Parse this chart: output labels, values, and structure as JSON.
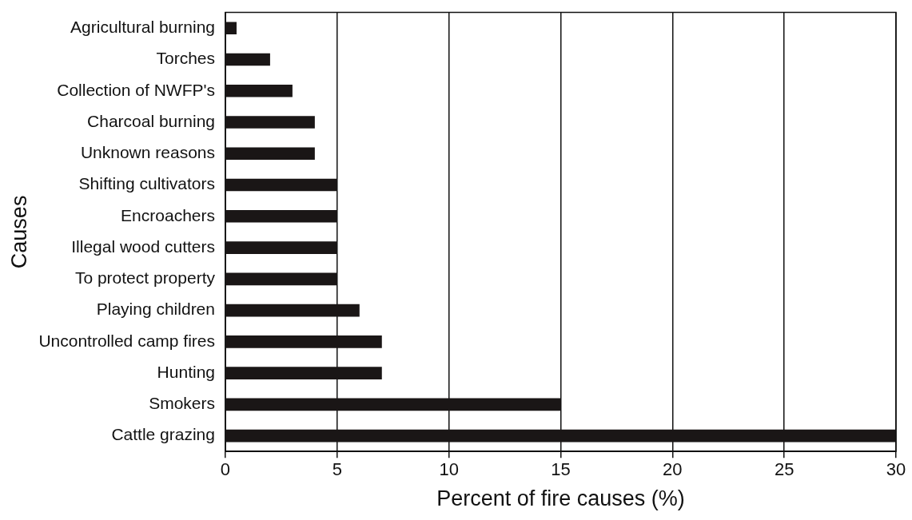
{
  "chart_data": {
    "type": "bar",
    "orientation": "horizontal",
    "xlabel": "Percent of fire causes (%)",
    "ylabel": "Causes",
    "categories": [
      "Agricultural burning",
      "Torches",
      "Collection of NWFP's",
      "Charcoal burning",
      "Unknown reasons",
      "Shifting cultivators",
      "Encroachers",
      "Illegal wood cutters",
      "To protect property",
      "Playing children",
      "Uncontrolled camp fires",
      "Hunting",
      "Smokers",
      "Cattle grazing"
    ],
    "values": [
      0.5,
      2,
      3,
      4,
      4,
      5,
      5,
      5,
      5,
      6,
      7,
      7,
      15,
      30
    ],
    "color": "#1a1616",
    "xlim": [
      0,
      30
    ],
    "xticks": [
      0,
      5,
      10,
      15,
      20,
      25,
      30
    ],
    "grid": "x"
  }
}
